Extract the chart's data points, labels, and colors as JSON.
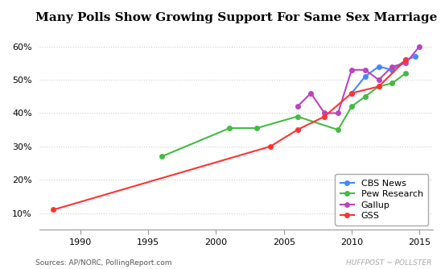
{
  "title": "Many Polls Show Growing Support For Same Sex Marriage",
  "source_left": "Sources: AP/NORC, PollingReport.com",
  "source_right": "HUFFPOST ~ POLLSTER",
  "xlim": [
    1987,
    2016
  ],
  "ylim": [
    0.05,
    0.65
  ],
  "yticks": [
    0.1,
    0.2,
    0.3,
    0.4,
    0.5,
    0.6
  ],
  "ytick_labels": [
    "10%",
    "20%",
    "30%",
    "40%",
    "50%",
    "60%"
  ],
  "xticks": [
    1990,
    1995,
    2000,
    2005,
    2010,
    2015
  ],
  "cbs_news": {
    "color": "#4488ff",
    "label": "CBS News",
    "x": [
      2010,
      2011,
      2012,
      2013,
      2014,
      2014.7
    ],
    "y": [
      0.46,
      0.51,
      0.54,
      0.53,
      0.56,
      0.57
    ]
  },
  "pew_research": {
    "color": "#44bb44",
    "label": "Pew Research",
    "x": [
      1996,
      2001,
      2003,
      2006,
      2009,
      2010,
      2011,
      2012,
      2013,
      2014
    ],
    "y": [
      0.27,
      0.355,
      0.355,
      0.39,
      0.35,
      0.42,
      0.45,
      0.48,
      0.49,
      0.52
    ]
  },
  "gallup": {
    "color": "#bb44bb",
    "label": "Gallup",
    "x": [
      2006,
      2007,
      2008,
      2009,
      2010,
      2011,
      2012,
      2013,
      2014,
      2015
    ],
    "y": [
      0.42,
      0.46,
      0.4,
      0.4,
      0.53,
      0.53,
      0.5,
      0.54,
      0.55,
      0.6
    ]
  },
  "gss": {
    "color": "#ff3333",
    "label": "GSS",
    "x": [
      1988,
      2004,
      2006,
      2008,
      2010,
      2012,
      2014
    ],
    "y": [
      0.11,
      0.3,
      0.35,
      0.39,
      0.46,
      0.48,
      0.56
    ]
  },
  "background_color": "#ffffff",
  "grid_color": "#cccccc",
  "title_fontsize": 11,
  "tick_fontsize": 8,
  "legend_fontsize": 8,
  "source_fontsize": 6.5
}
